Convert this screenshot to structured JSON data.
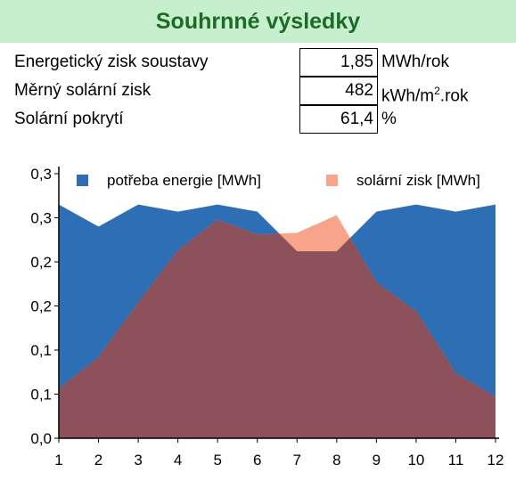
{
  "header": {
    "title": "Souhrnné výsledky"
  },
  "results": {
    "energy_gain": {
      "label": "Energetický zisk soustavy",
      "value": "1,85",
      "unit": "MWh/rok"
    },
    "specific_gain": {
      "label": "Měrný solární zisk",
      "value": "482",
      "unit_main": "kWh/m",
      "unit_sup": "2",
      "unit_tail": ".rok"
    },
    "coverage": {
      "label": "Solární pokrytí",
      "value": "61,4",
      "unit": "%"
    }
  },
  "colors": {
    "demand": "#2e6eb4",
    "solar": "#f8a48a",
    "overlap": "#8d515b",
    "header_bg": "#c6efce",
    "header_text": "#1e6b25"
  },
  "chart_data": {
    "type": "area",
    "categories": [
      "1",
      "2",
      "3",
      "4",
      "5",
      "6",
      "7",
      "8",
      "9",
      "10",
      "11",
      "12"
    ],
    "series": [
      {
        "name": "potřeba energie [MWh]",
        "values": [
          0.265,
          0.24,
          0.265,
          0.257,
          0.265,
          0.257,
          0.212,
          0.212,
          0.257,
          0.265,
          0.257,
          0.265
        ]
      },
      {
        "name": "solární zisk [MWh]",
        "values": [
          0.056,
          0.092,
          0.154,
          0.213,
          0.248,
          0.231,
          0.233,
          0.253,
          0.177,
          0.144,
          0.074,
          0.047
        ]
      }
    ],
    "ylim": [
      0,
      0.3
    ],
    "yticks": [
      0,
      0.05,
      0.1,
      0.15,
      0.2,
      0.25,
      0.3
    ],
    "ytick_labels": [
      "0,0",
      "0,1",
      "0,1",
      "0,2",
      "0,2",
      "0,3",
      "0,3"
    ],
    "legend_position": "top",
    "grid": false,
    "title": "",
    "xlabel": "",
    "ylabel": ""
  }
}
